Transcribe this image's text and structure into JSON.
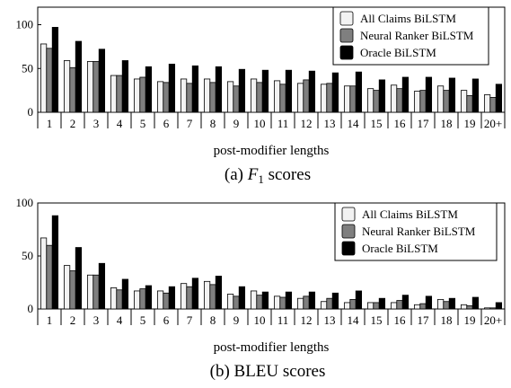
{
  "chart_data": [
    {
      "type": "bar",
      "caption": "(a) F1 scores",
      "caption_prefix": "(a)",
      "caption_var": "F",
      "caption_sub": "1",
      "caption_suffix": "scores",
      "xlabel": "post-modifier lengths",
      "ylabel": "",
      "ylim": [
        0,
        120
      ],
      "yticks": [
        0,
        50,
        100
      ],
      "grid": false,
      "legend_position": "top-right",
      "categories": [
        "1",
        "2",
        "3",
        "4",
        "5",
        "6",
        "7",
        "8",
        "9",
        "10",
        "11",
        "12",
        "13",
        "14",
        "15",
        "16",
        "17",
        "18",
        "19",
        "20+"
      ],
      "series": [
        {
          "name": "All Claims BiLSTM",
          "color": "#f2f2f2",
          "values": [
            78,
            59,
            58,
            42,
            38,
            35,
            38,
            38,
            35,
            38,
            36,
            33,
            32,
            30,
            27,
            31,
            24,
            30,
            25,
            20
          ]
        },
        {
          "name": "Neural Ranker BiLSTM",
          "color": "#7f7f7f",
          "values": [
            73,
            51,
            58,
            42,
            40,
            34,
            33,
            34,
            30,
            34,
            32,
            37,
            33,
            30,
            25,
            27,
            25,
            25,
            19,
            17
          ]
        },
        {
          "name": "Oracle BiLSTM",
          "color": "#000000",
          "values": [
            97,
            81,
            72,
            59,
            52,
            55,
            53,
            52,
            49,
            48,
            48,
            47,
            45,
            46,
            37,
            40,
            40,
            39,
            38,
            32
          ]
        }
      ]
    },
    {
      "type": "bar",
      "caption": "(b) BLEU scores",
      "caption_prefix": "(b)",
      "caption_var": "",
      "caption_sub": "",
      "caption_suffix": "BLEU scores",
      "xlabel": "post-modifier lengths",
      "ylabel": "",
      "ylim": [
        0,
        100
      ],
      "yticks": [
        0,
        50,
        100
      ],
      "grid": false,
      "legend_position": "top-right",
      "categories": [
        "1",
        "2",
        "3",
        "4",
        "5",
        "6",
        "7",
        "8",
        "9",
        "10",
        "11",
        "12",
        "13",
        "14",
        "15",
        "16",
        "17",
        "18",
        "19",
        "20+"
      ],
      "series": [
        {
          "name": "All Claims BiLSTM",
          "color": "#f2f2f2",
          "values": [
            67,
            41,
            32,
            20,
            17,
            17,
            24,
            26,
            14,
            17,
            12,
            10,
            7,
            6,
            6,
            6,
            4,
            9,
            4,
            1
          ]
        },
        {
          "name": "Neural Ranker BiLSTM",
          "color": "#7f7f7f",
          "values": [
            60,
            36,
            32,
            18,
            19,
            15,
            21,
            23,
            12,
            13,
            11,
            12,
            10,
            9,
            6,
            8,
            5,
            7,
            3,
            1
          ]
        },
        {
          "name": "Oracle BiLSTM",
          "color": "#000000",
          "values": [
            88,
            58,
            43,
            28,
            22,
            21,
            29,
            31,
            21,
            16,
            16,
            16,
            15,
            17,
            10,
            13,
            12,
            10,
            11,
            6
          ]
        }
      ]
    }
  ]
}
